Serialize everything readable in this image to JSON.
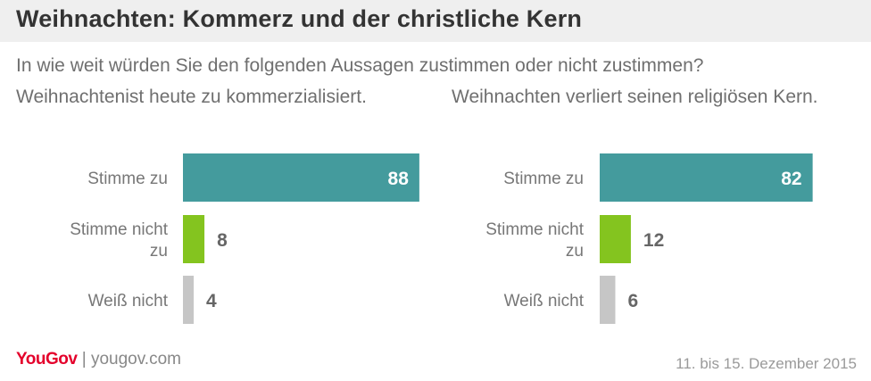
{
  "header": {
    "title": "Weihnachten: Kommerz und der christliche Kern",
    "question": "In wie weit würden Sie den folgenden Aussagen zustimmen oder nicht zustimmen?"
  },
  "chart_data": [
    {
      "type": "bar",
      "orientation": "horizontal",
      "title": "Weihnachtenist heute zu kommerzialisiert.",
      "categories": [
        [
          "Stimme zu"
        ],
        [
          "Stimme nicht",
          "zu"
        ],
        [
          "Weiß nicht"
        ]
      ],
      "values": [
        88,
        8,
        4
      ],
      "colors": [
        "#449b9d",
        "#84c41f",
        "#c6c6c6"
      ],
      "label_inside": [
        true,
        false,
        false
      ],
      "xlim": [
        0,
        100
      ]
    },
    {
      "type": "bar",
      "orientation": "horizontal",
      "title": "Weihnachten verliert seinen religiösen Kern.",
      "categories": [
        [
          "Stimme zu"
        ],
        [
          "Stimme nicht",
          "zu"
        ],
        [
          "Weiß nicht"
        ]
      ],
      "values": [
        82,
        12,
        6
      ],
      "colors": [
        "#449b9d",
        "#84c41f",
        "#c6c6c6"
      ],
      "label_inside": [
        true,
        false,
        false
      ],
      "xlim": [
        0,
        100
      ]
    }
  ],
  "footer": {
    "logo": "YouGov",
    "separator": "|",
    "url": "yougov.com",
    "date": "11. bis 15. Dezember 2015"
  }
}
